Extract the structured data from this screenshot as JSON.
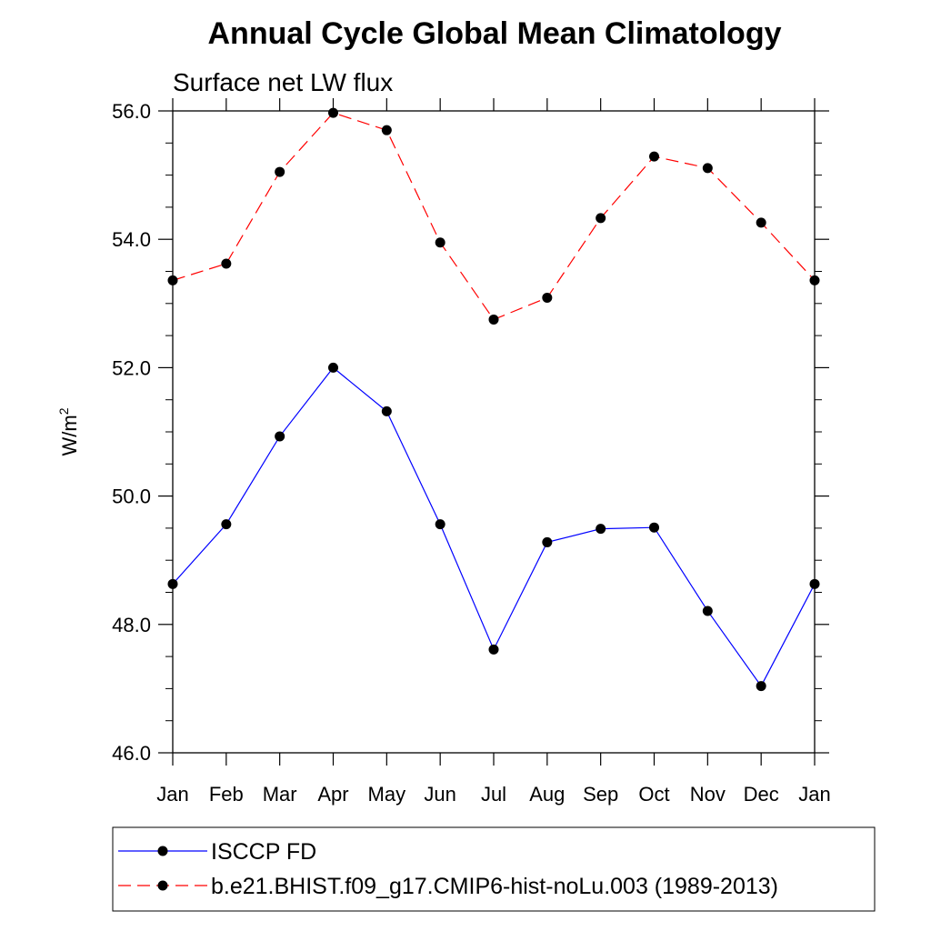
{
  "chart_data": {
    "type": "line",
    "title": "Annual Cycle Global Mean Climatology",
    "subtitle": "Surface net LW flux",
    "ylabel": "W/m",
    "ylabel_sup": "2",
    "xlabel": "",
    "categories": [
      "Jan",
      "Feb",
      "Mar",
      "Apr",
      "May",
      "Jun",
      "Jul",
      "Aug",
      "Sep",
      "Oct",
      "Nov",
      "Dec",
      "Jan"
    ],
    "ylim": [
      46.0,
      56.0
    ],
    "yticks": [
      "46.0",
      "48.0",
      "50.0",
      "52.0",
      "54.0",
      "56.0"
    ],
    "grid": false,
    "legend_position": "bottom",
    "series": [
      {
        "name": "ISCCP FD",
        "color": "#0000ff",
        "dashed": false,
        "values": [
          48.63,
          49.56,
          50.93,
          52.0,
          51.32,
          49.56,
          47.61,
          49.28,
          49.49,
          49.51,
          48.21,
          47.04,
          48.63
        ]
      },
      {
        "name": "b.e21.BHIST.f09_g17.CMIP6-hist-noLu.003 (1989-2013)",
        "color": "#ff0000",
        "dashed": true,
        "values": [
          53.36,
          53.62,
          55.05,
          55.97,
          55.7,
          53.95,
          52.75,
          53.09,
          54.33,
          55.29,
          55.11,
          54.26,
          53.36
        ]
      }
    ]
  }
}
